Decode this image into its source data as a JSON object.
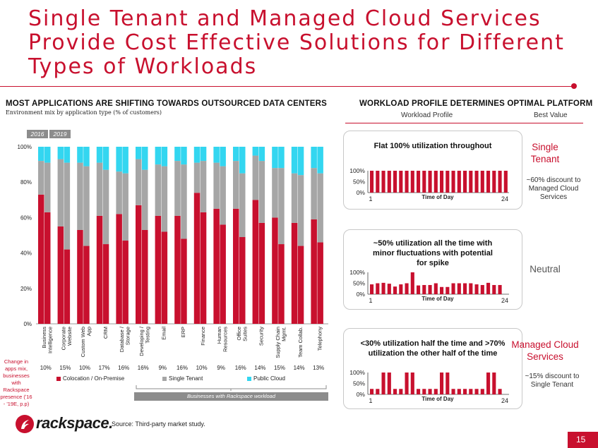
{
  "title": "Single Tenant and Managed Cloud Services Provide Cost Effective Solutions for Different Types of Workloads",
  "left_section": {
    "title": "MOST APPLICATIONS ARE SHIFTING TOWARDS OUTSOURCED DATA CENTERS",
    "subtitle": "Environment mix by application type (% of customers)",
    "year_labels": [
      "2016",
      "2019"
    ],
    "change_label": "Change in apps mix, businesses with Rackspace presence ('16 - '19E, p.p)",
    "changes": [
      "10%",
      "15%",
      "10%",
      "17%",
      "16%",
      "16%",
      "9%",
      "16%",
      "10%",
      "9%",
      "16%",
      "14%",
      "15%",
      "14%",
      "13%"
    ],
    "bracket_label": "Businesses with Rackspace workload"
  },
  "right_section": {
    "title": "WORKLOAD PROFILE DETERMINES OPTIMAL PLATFORM",
    "col_workload": "Workload Profile",
    "col_best": "Best Value",
    "panels": [
      {
        "title": "Flat 100% utilization throughout",
        "best": "Single Tenant",
        "note": "~60% discount to Managed Cloud Services"
      },
      {
        "title": "~50% utilization all the time with minor fluctuations with potential for spike",
        "best": "Neutral",
        "note": ""
      },
      {
        "title": "<30% utilization half the time and >70% utilization the other half of the time",
        "best": "Managed Cloud Services",
        "note": "~15% discount to Single Tenant"
      }
    ],
    "axis_ticks": [
      "100%",
      "50%",
      "0%"
    ],
    "x_start": "1",
    "x_end": "24",
    "x_title": "Time of Day"
  },
  "footer": {
    "logo": "rackspace.",
    "source": "Source: Third-party market study.",
    "page": "15"
  },
  "colors": {
    "accent": "#c8102e",
    "colocation": "#c8102e",
    "single_tenant": "#a6a6a6",
    "public_cloud": "#33d6f0",
    "bracket_bar": "#8c8c8c"
  },
  "chart_data": [
    {
      "type": "bar",
      "stacked": true,
      "title": "",
      "xlabel": "",
      "ylabel": "",
      "ylim": [
        0,
        100
      ],
      "y_ticks": [
        "0%",
        "20%",
        "40%",
        "60%",
        "80%",
        "100%"
      ],
      "categories": [
        "Business Intelligence",
        "Corporate Website",
        "Custom Web App",
        "CRM",
        "Database / Storage",
        "Developing / Testing",
        "Email",
        "ERP",
        "Finance",
        "Human Resources",
        "Office Suites",
        "Security",
        "Supply Chain Mgmt.",
        "Team Collab.",
        "Telephony"
      ],
      "groups": [
        "2016",
        "2019"
      ],
      "legend": "bottom",
      "series": [
        {
          "name": "Colocation / On-Premise",
          "values_2016": [
            73,
            55,
            53,
            61,
            62,
            67,
            61,
            61,
            74,
            65,
            65,
            70,
            60,
            57,
            59
          ],
          "values_2019": [
            63,
            42,
            44,
            45,
            47,
            53,
            52,
            48,
            63,
            56,
            49,
            57,
            45,
            44,
            46
          ]
        },
        {
          "name": "Single Tenant",
          "values_2016": [
            19,
            38,
            38,
            30,
            24,
            26,
            29,
            31,
            17,
            26,
            27,
            25,
            28,
            28,
            29
          ],
          "values_2019": [
            28,
            49,
            45,
            42,
            38,
            34,
            37,
            42,
            29,
            33,
            36,
            35,
            43,
            40,
            39
          ]
        },
        {
          "name": "Public Cloud",
          "values_2016": [
            8,
            7,
            9,
            9,
            14,
            7,
            10,
            8,
            9,
            9,
            8,
            5,
            12,
            15,
            12
          ],
          "values_2019": [
            9,
            9,
            11,
            13,
            15,
            13,
            11,
            10,
            8,
            11,
            15,
            8,
            12,
            16,
            15
          ]
        }
      ]
    },
    {
      "type": "bar",
      "title": "Flat 100% utilization throughout",
      "xlabel": "Time of Day",
      "ylim": [
        0,
        100
      ],
      "values": [
        100,
        100,
        100,
        100,
        100,
        100,
        100,
        100,
        100,
        100,
        100,
        100,
        100,
        100,
        100,
        100,
        100,
        100,
        100,
        100,
        100,
        100,
        100,
        100
      ]
    },
    {
      "type": "bar",
      "title": "~50% utilization all the time with minor fluctuations with potential for spike",
      "xlabel": "Time of Day",
      "ylim": [
        0,
        100
      ],
      "values": [
        45,
        50,
        52,
        48,
        35,
        45,
        50,
        100,
        40,
        42,
        42,
        50,
        33,
        33,
        50,
        50,
        50,
        50,
        45,
        42,
        52,
        42,
        42,
        0
      ]
    },
    {
      "type": "bar",
      "title": "<30% utilization half the time and >70% utilization the other half of the time",
      "xlabel": "Time of Day",
      "ylim": [
        0,
        100
      ],
      "values": [
        25,
        25,
        100,
        100,
        25,
        25,
        100,
        100,
        25,
        25,
        25,
        25,
        100,
        100,
        25,
        25,
        25,
        25,
        25,
        25,
        100,
        100,
        25,
        0
      ]
    }
  ]
}
